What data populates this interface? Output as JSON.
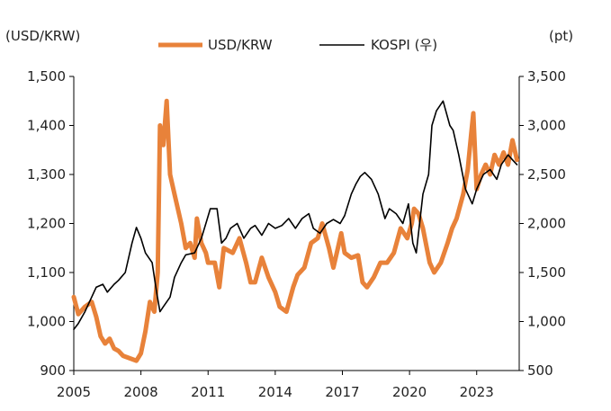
{
  "chart_data": {
    "type": "line",
    "left_axis_unit": "(USD/KRW)",
    "right_axis_unit": "(pt)",
    "x_ticks": [
      "2005",
      "2008",
      "2011",
      "2014",
      "2017",
      "2020",
      "2023"
    ],
    "x_range": [
      2005,
      2024.9
    ],
    "y_left": {
      "ticks": [
        "900",
        "1,000",
        "1,100",
        "1,200",
        "1,300",
        "1,400",
        "1,500"
      ],
      "range": [
        900,
        1500
      ]
    },
    "y_right": {
      "ticks": [
        "500",
        "1,000",
        "1,500",
        "2,000",
        "2,500",
        "3,000",
        "3,500"
      ],
      "range": [
        500,
        3500
      ]
    },
    "legend_position": "top",
    "series": [
      {
        "name": "USD/KRW",
        "axis": "left",
        "color": "#e8823a",
        "points": [
          [
            2005.0,
            1050
          ],
          [
            2005.2,
            1015
          ],
          [
            2005.5,
            1030
          ],
          [
            2005.8,
            1040
          ],
          [
            2006.0,
            1010
          ],
          [
            2006.2,
            970
          ],
          [
            2006.4,
            955
          ],
          [
            2006.6,
            965
          ],
          [
            2006.8,
            945
          ],
          [
            2007.0,
            940
          ],
          [
            2007.2,
            930
          ],
          [
            2007.5,
            925
          ],
          [
            2007.8,
            920
          ],
          [
            2008.0,
            935
          ],
          [
            2008.2,
            980
          ],
          [
            2008.4,
            1040
          ],
          [
            2008.6,
            1020
          ],
          [
            2008.75,
            1100
          ],
          [
            2008.85,
            1400
          ],
          [
            2009.0,
            1360
          ],
          [
            2009.15,
            1450
          ],
          [
            2009.3,
            1300
          ],
          [
            2009.5,
            1260
          ],
          [
            2009.8,
            1200
          ],
          [
            2010.0,
            1150
          ],
          [
            2010.2,
            1160
          ],
          [
            2010.4,
            1130
          ],
          [
            2010.5,
            1210
          ],
          [
            2010.7,
            1160
          ],
          [
            2010.9,
            1140
          ],
          [
            2011.0,
            1120
          ],
          [
            2011.3,
            1120
          ],
          [
            2011.5,
            1070
          ],
          [
            2011.7,
            1150
          ],
          [
            2011.9,
            1145
          ],
          [
            2012.1,
            1140
          ],
          [
            2012.4,
            1170
          ],
          [
            2012.7,
            1120
          ],
          [
            2012.9,
            1080
          ],
          [
            2013.1,
            1080
          ],
          [
            2013.4,
            1130
          ],
          [
            2013.7,
            1090
          ],
          [
            2014.0,
            1060
          ],
          [
            2014.2,
            1030
          ],
          [
            2014.5,
            1020
          ],
          [
            2014.8,
            1070
          ],
          [
            2015.0,
            1095
          ],
          [
            2015.3,
            1110
          ],
          [
            2015.6,
            1160
          ],
          [
            2015.9,
            1170
          ],
          [
            2016.1,
            1200
          ],
          [
            2016.4,
            1150
          ],
          [
            2016.6,
            1110
          ],
          [
            2016.8,
            1150
          ],
          [
            2016.95,
            1180
          ],
          [
            2017.1,
            1140
          ],
          [
            2017.4,
            1130
          ],
          [
            2017.7,
            1135
          ],
          [
            2017.9,
            1080
          ],
          [
            2018.1,
            1070
          ],
          [
            2018.4,
            1090
          ],
          [
            2018.7,
            1120
          ],
          [
            2019.0,
            1120
          ],
          [
            2019.3,
            1140
          ],
          [
            2019.6,
            1190
          ],
          [
            2019.9,
            1170
          ],
          [
            2020.1,
            1200
          ],
          [
            2020.2,
            1230
          ],
          [
            2020.4,
            1220
          ],
          [
            2020.6,
            1190
          ],
          [
            2020.9,
            1120
          ],
          [
            2021.1,
            1100
          ],
          [
            2021.4,
            1120
          ],
          [
            2021.7,
            1160
          ],
          [
            2021.9,
            1190
          ],
          [
            2022.1,
            1210
          ],
          [
            2022.4,
            1260
          ],
          [
            2022.6,
            1310
          ],
          [
            2022.75,
            1380
          ],
          [
            2022.85,
            1425
          ],
          [
            2023.0,
            1270
          ],
          [
            2023.2,
            1300
          ],
          [
            2023.4,
            1320
          ],
          [
            2023.6,
            1300
          ],
          [
            2023.8,
            1340
          ],
          [
            2024.0,
            1320
          ],
          [
            2024.2,
            1345
          ],
          [
            2024.4,
            1320
          ],
          [
            2024.6,
            1370
          ],
          [
            2024.8,
            1330
          ]
        ]
      },
      {
        "name": "KOSPI (우)",
        "axis": "right",
        "color": "#000000",
        "points": [
          [
            2005.0,
            920
          ],
          [
            2005.2,
            980
          ],
          [
            2005.5,
            1100
          ],
          [
            2005.8,
            1250
          ],
          [
            2006.0,
            1350
          ],
          [
            2006.3,
            1380
          ],
          [
            2006.5,
            1300
          ],
          [
            2006.8,
            1380
          ],
          [
            2007.0,
            1420
          ],
          [
            2007.3,
            1500
          ],
          [
            2007.6,
            1800
          ],
          [
            2007.8,
            1960
          ],
          [
            2008.0,
            1850
          ],
          [
            2008.2,
            1700
          ],
          [
            2008.5,
            1600
          ],
          [
            2008.7,
            1300
          ],
          [
            2008.85,
            1100
          ],
          [
            2009.0,
            1150
          ],
          [
            2009.3,
            1250
          ],
          [
            2009.5,
            1450
          ],
          [
            2009.8,
            1600
          ],
          [
            2010.0,
            1680
          ],
          [
            2010.4,
            1700
          ],
          [
            2010.7,
            1850
          ],
          [
            2010.9,
            2000
          ],
          [
            2011.1,
            2150
          ],
          [
            2011.4,
            2150
          ],
          [
            2011.6,
            1800
          ],
          [
            2011.8,
            1850
          ],
          [
            2012.0,
            1950
          ],
          [
            2012.3,
            2000
          ],
          [
            2012.6,
            1850
          ],
          [
            2012.9,
            1950
          ],
          [
            2013.1,
            1980
          ],
          [
            2013.4,
            1880
          ],
          [
            2013.7,
            2000
          ],
          [
            2014.0,
            1950
          ],
          [
            2014.3,
            1980
          ],
          [
            2014.6,
            2050
          ],
          [
            2014.9,
            1950
          ],
          [
            2015.2,
            2050
          ],
          [
            2015.5,
            2100
          ],
          [
            2015.7,
            1950
          ],
          [
            2016.0,
            1900
          ],
          [
            2016.3,
            2000
          ],
          [
            2016.6,
            2040
          ],
          [
            2016.9,
            2000
          ],
          [
            2017.1,
            2080
          ],
          [
            2017.4,
            2300
          ],
          [
            2017.6,
            2400
          ],
          [
            2017.8,
            2480
          ],
          [
            2018.0,
            2520
          ],
          [
            2018.3,
            2450
          ],
          [
            2018.6,
            2300
          ],
          [
            2018.9,
            2050
          ],
          [
            2019.1,
            2150
          ],
          [
            2019.4,
            2100
          ],
          [
            2019.7,
            2000
          ],
          [
            2019.95,
            2200
          ],
          [
            2020.15,
            1800
          ],
          [
            2020.3,
            1700
          ],
          [
            2020.6,
            2300
          ],
          [
            2020.85,
            2500
          ],
          [
            2021.0,
            3000
          ],
          [
            2021.2,
            3150
          ],
          [
            2021.5,
            3250
          ],
          [
            2021.8,
            3000
          ],
          [
            2021.95,
            2950
          ],
          [
            2022.2,
            2700
          ],
          [
            2022.5,
            2350
          ],
          [
            2022.8,
            2200
          ],
          [
            2023.0,
            2350
          ],
          [
            2023.3,
            2500
          ],
          [
            2023.6,
            2550
          ],
          [
            2023.9,
            2450
          ],
          [
            2024.1,
            2600
          ],
          [
            2024.4,
            2700
          ],
          [
            2024.6,
            2650
          ],
          [
            2024.8,
            2600
          ]
        ]
      }
    ]
  }
}
